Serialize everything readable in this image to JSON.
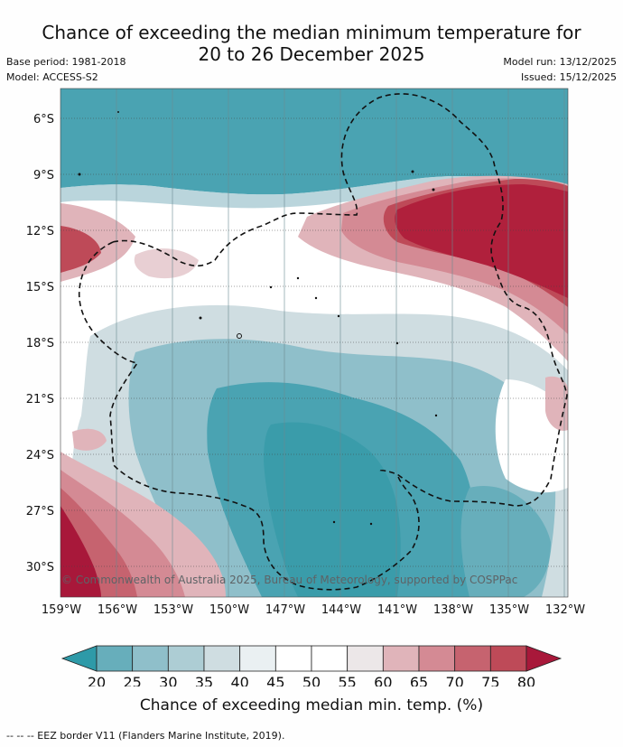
{
  "title": {
    "line1": "Chance of exceeding the median minimum temperature for",
    "line2": "20 to 26 December 2025"
  },
  "meta": {
    "base_period": "Base period: 1981-2018",
    "model": "Model: ACCESS-S2",
    "model_run": "Model run: 13/12/2025",
    "issued": "Issued: 15/12/2025"
  },
  "map": {
    "copyright": "© Commonwealth of Australia 2025, Bureau of Meteorology, supported by COSPPac",
    "lat_labels": [
      "6°S",
      "9°S",
      "12°S",
      "15°S",
      "18°S",
      "21°S",
      "24°S",
      "27°S",
      "30°S"
    ],
    "lon_labels": [
      "159°W",
      "156°W",
      "153°W",
      "150°W",
      "147°W",
      "144°W",
      "141°W",
      "138°W",
      "135°W",
      "132°W"
    ]
  },
  "colorbar": {
    "ticks": [
      "20",
      "25",
      "30",
      "35",
      "40",
      "45",
      "50",
      "55",
      "60",
      "65",
      "70",
      "75",
      "80"
    ],
    "colors": [
      "#2e9aa8",
      "#67aebb",
      "#8fbfca",
      "#adcdd4",
      "#cfdde1",
      "#eaf0f2",
      "#ffffff",
      "#ffffff",
      "#ece7e8",
      "#e0b4ba",
      "#d48a94",
      "#c6636f",
      "#be4a58",
      "#a8183a"
    ],
    "label": "Chance of exceeding median min. temp. (%)"
  },
  "legend": {
    "eez": "--  --  -- EEZ border V11 (Flanders Marine Institute, 2019)."
  }
}
